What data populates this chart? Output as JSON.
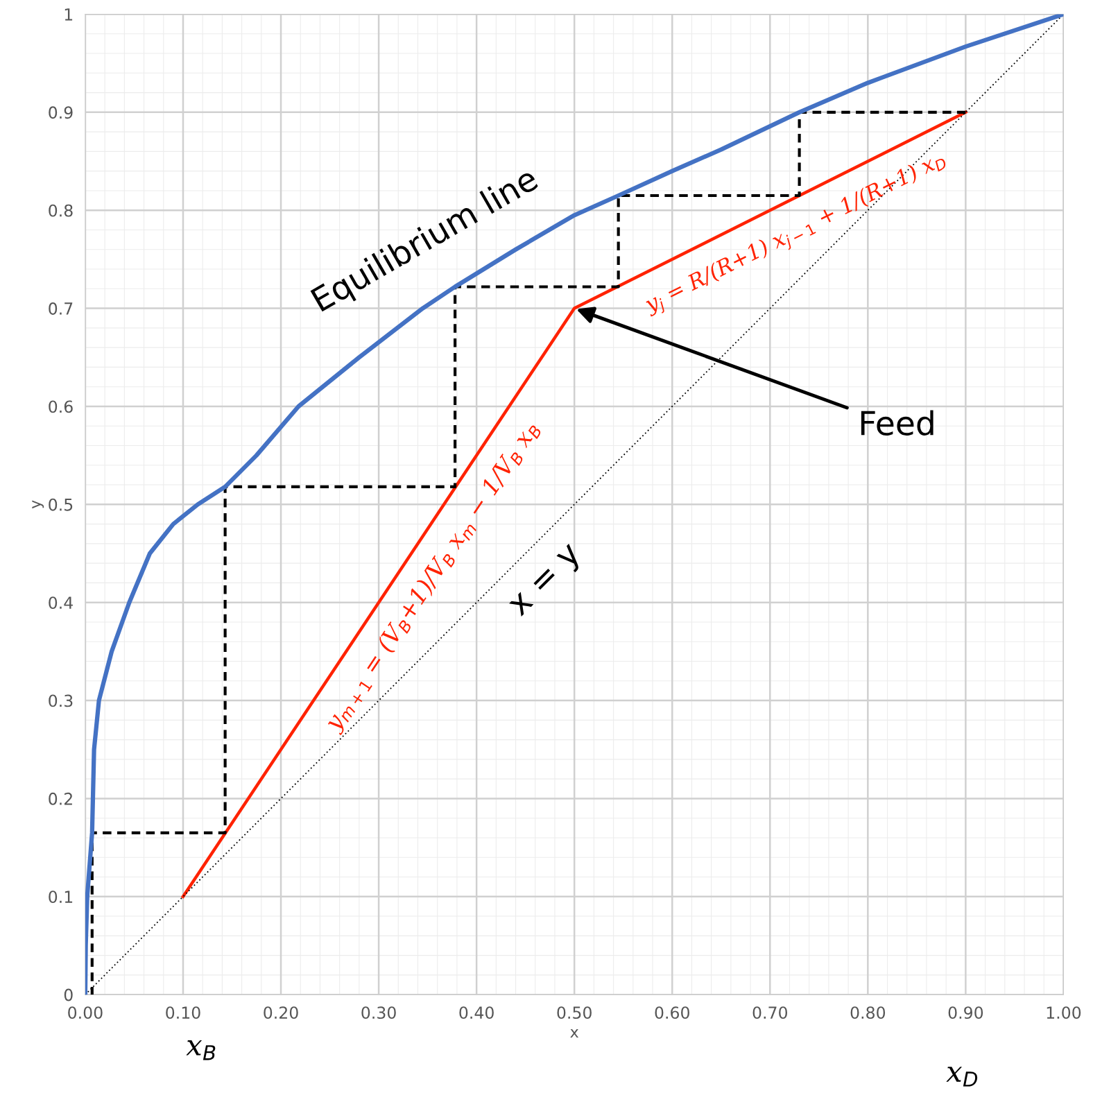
{
  "chart_data": {
    "type": "line",
    "xlabel": "x",
    "ylabel": "y",
    "xlim": [
      0,
      1
    ],
    "ylim": [
      0,
      1
    ],
    "xticks": [
      {
        "value": 0,
        "label": "0.00"
      },
      {
        "value": 0.1,
        "label": "0.10"
      },
      {
        "value": 0.2,
        "label": "0.20"
      },
      {
        "value": 0.3,
        "label": "0.30"
      },
      {
        "value": 0.4,
        "label": "0.40"
      },
      {
        "value": 0.5,
        "label": "0.50"
      },
      {
        "value": 0.6,
        "label": "0.60"
      },
      {
        "value": 0.7,
        "label": "0.70"
      },
      {
        "value": 0.8,
        "label": "0.80"
      },
      {
        "value": 0.9,
        "label": "0.90"
      },
      {
        "value": 1,
        "label": "1.00"
      }
    ],
    "yticks": [
      0,
      0.1,
      0.2,
      0.3,
      0.4,
      0.5,
      0.6,
      0.7,
      0.8,
      0.9,
      1
    ],
    "grid": true,
    "legend": false,
    "series": [
      {
        "name": "Equilibrium line",
        "color": "#4472c4",
        "line_style": "solid",
        "x": [
          0,
          0.0005,
          0.002,
          0.007,
          0.009,
          0.014,
          0.027,
          0.045,
          0.066,
          0.09,
          0.115,
          0.143,
          0.175,
          0.218,
          0.28,
          0.345,
          0.378,
          0.44,
          0.5,
          0.545,
          0.6,
          0.65,
          0.73,
          0.8,
          0.9,
          1.0
        ],
        "values": [
          0,
          0.05,
          0.1,
          0.165,
          0.25,
          0.3,
          0.35,
          0.4,
          0.45,
          0.48,
          0.5,
          0.518,
          0.55,
          0.6,
          0.65,
          0.7,
          0.722,
          0.76,
          0.795,
          0.815,
          0.84,
          0.862,
          0.9,
          0.93,
          0.967,
          1.0
        ]
      },
      {
        "color": "#ff2200",
        "line_style": "solid",
        "x": [
          0.1,
          0.5,
          0.9
        ],
        "values": [
          0.1,
          0.7,
          0.9
        ]
      },
      {
        "name": "x = y",
        "color": "#000000",
        "line_style": "dotted",
        "x": [
          0,
          1
        ],
        "values": [
          0,
          1
        ]
      },
      {
        "color": "#000000",
        "line_style": "dashed",
        "x": [
          0.9,
          0.73,
          0.73,
          0.545,
          0.545,
          0.378,
          0.378,
          0.143,
          0.143,
          0.007,
          0.007
        ],
        "values": [
          0.9,
          0.9,
          0.815,
          0.815,
          0.722,
          0.722,
          0.518,
          0.518,
          0.165,
          0.165,
          0
        ]
      }
    ],
    "annotations": [
      "y$_{m+1}$ = (V$_{B}$+1)/V$_{B}$ x$_{m}$ − 1/V$_{B}$ x$_{B}$",
      "y$_{j}$ = R/(R+1) x$_{j−1}$ + 1/(R+1) x$_{D}$",
      {
        "text": "Feed",
        "x": 0.5,
        "y": 0.7
      },
      "x$_{B}$",
      "x$_{D}$"
    ]
  }
}
